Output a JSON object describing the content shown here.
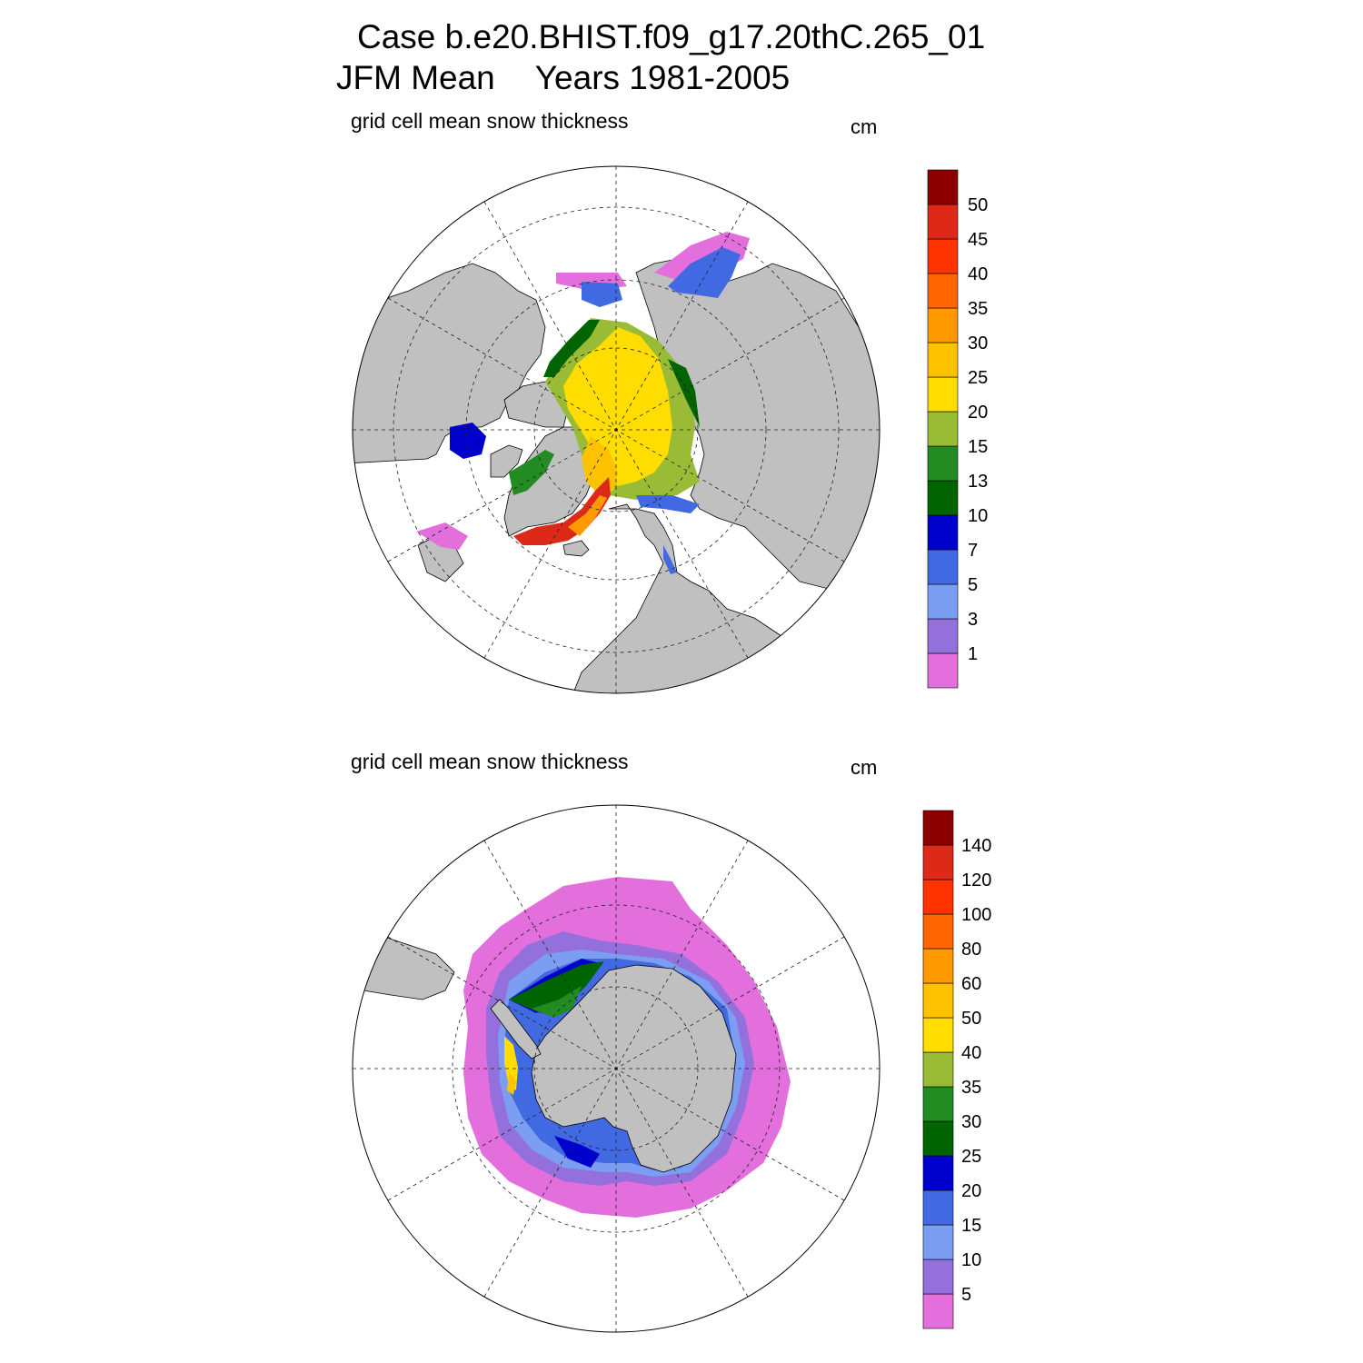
{
  "title": {
    "case_line": "Case b.e20.BHIST.f09_g17.20thC.265_01",
    "season": "JFM Mean",
    "years": "Years 1981-2005"
  },
  "panels": [
    {
      "id": "north",
      "subtitle": "grid cell mean snow thickness",
      "units": "cm",
      "colorbar": {
        "labels": [
          "1",
          "3",
          "5",
          "7",
          "10",
          "13",
          "15",
          "20",
          "25",
          "30",
          "35",
          "40",
          "45",
          "50"
        ],
        "colors": [
          "#e36fdd",
          "#9370db",
          "#7b9df2",
          "#4169e1",
          "#0000cd",
          "#006400",
          "#228b22",
          "#9abb35",
          "#ffdd00",
          "#ffc200",
          "#ff9900",
          "#ff6600",
          "#ff3300",
          "#dd2a18",
          "#8b0000"
        ]
      }
    },
    {
      "id": "south",
      "subtitle": "grid cell mean snow thickness",
      "units": "cm",
      "colorbar": {
        "labels": [
          "5",
          "10",
          "15",
          "20",
          "25",
          "30",
          "35",
          "40",
          "50",
          "60",
          "80",
          "100",
          "120",
          "140"
        ],
        "colors": [
          "#e36fdd",
          "#9370db",
          "#7b9df2",
          "#4169e1",
          "#0000cd",
          "#006400",
          "#228b22",
          "#9abb35",
          "#ffdd00",
          "#ffc200",
          "#ff9900",
          "#ff6600",
          "#ff3300",
          "#dd2a18",
          "#8b0000"
        ]
      }
    }
  ],
  "colors": {
    "land": "#c0c0c0",
    "background": "#ffffff"
  }
}
